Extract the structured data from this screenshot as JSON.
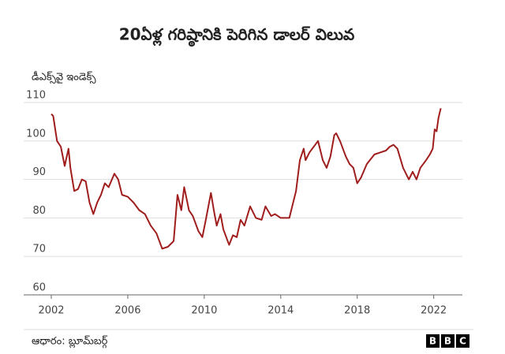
{
  "chart_data": {
    "type": "line",
    "title": "20ఏళ్ల గరిష్ఠానికి పెరిగిన డాలర్ విలువ",
    "y_label": "డీఎక్స్‌వై ఇండెక్స్",
    "source": "ఆధారం: బ్లూమ్‌బర్గ్",
    "color": "#a01d1d",
    "x": [
      2002.0,
      2002.1,
      2002.3,
      2002.5,
      2002.7,
      2002.9,
      2003.0,
      2003.2,
      2003.4,
      2003.6,
      2003.8,
      2004.0,
      2004.2,
      2004.4,
      2004.6,
      2004.8,
      2005.0,
      2005.3,
      2005.5,
      2005.7,
      2006.0,
      2006.3,
      2006.6,
      2006.9,
      2007.2,
      2007.5,
      2007.8,
      2008.1,
      2008.4,
      2008.6,
      2008.8,
      2008.95,
      2009.2,
      2009.4,
      2009.7,
      2009.9,
      2010.1,
      2010.35,
      2010.5,
      2010.65,
      2010.85,
      2011.0,
      2011.3,
      2011.5,
      2011.7,
      2011.9,
      2012.1,
      2012.4,
      2012.7,
      2013.0,
      2013.2,
      2013.5,
      2013.7,
      2014.0,
      2014.3,
      2014.45,
      2014.6,
      2014.8,
      2015.0,
      2015.2,
      2015.3,
      2015.5,
      2015.8,
      2015.95,
      2016.2,
      2016.4,
      2016.6,
      2016.8,
      2016.9,
      2017.1,
      2017.4,
      2017.6,
      2017.8,
      2018.0,
      2018.2,
      2018.5,
      2018.9,
      2019.2,
      2019.5,
      2019.7,
      2019.9,
      2020.1,
      2020.4,
      2020.7,
      2020.9,
      2021.1,
      2021.3,
      2021.6,
      2021.8,
      2021.95,
      2022.05,
      2022.15,
      2022.25,
      2022.37
    ],
    "values": [
      107,
      106.5,
      100,
      98.5,
      93.5,
      98,
      93,
      87,
      87.5,
      90,
      89.5,
      84,
      81,
      84,
      86,
      89,
      88,
      91.5,
      90,
      86,
      85.5,
      84,
      82,
      81,
      78,
      76,
      72,
      72.5,
      74,
      86,
      82,
      88,
      82,
      80.5,
      76.5,
      75,
      80,
      86.5,
      82,
      78,
      81,
      77,
      73,
      75.5,
      75,
      79.5,
      78,
      83,
      80,
      79.5,
      83,
      80.5,
      81,
      80,
      80,
      80,
      83,
      87,
      95,
      98,
      95,
      97,
      99,
      100,
      95,
      93,
      96,
      101.5,
      102,
      100,
      96,
      94,
      93,
      89,
      90.5,
      94,
      96.5,
      97,
      97.5,
      98.5,
      99,
      98,
      93,
      90,
      92,
      90,
      93,
      95,
      96.5,
      98,
      103,
      102.5,
      106,
      108.5
    ],
    "xlim": [
      2002,
      2023.5
    ],
    "xticks": [
      2002,
      2006,
      2010,
      2014,
      2018,
      2022
    ],
    "ylim": [
      60,
      110
    ],
    "yticks": [
      60,
      70,
      80,
      90,
      100,
      110
    ],
    "grid": true
  },
  "logo": [
    "B",
    "B",
    "C"
  ]
}
